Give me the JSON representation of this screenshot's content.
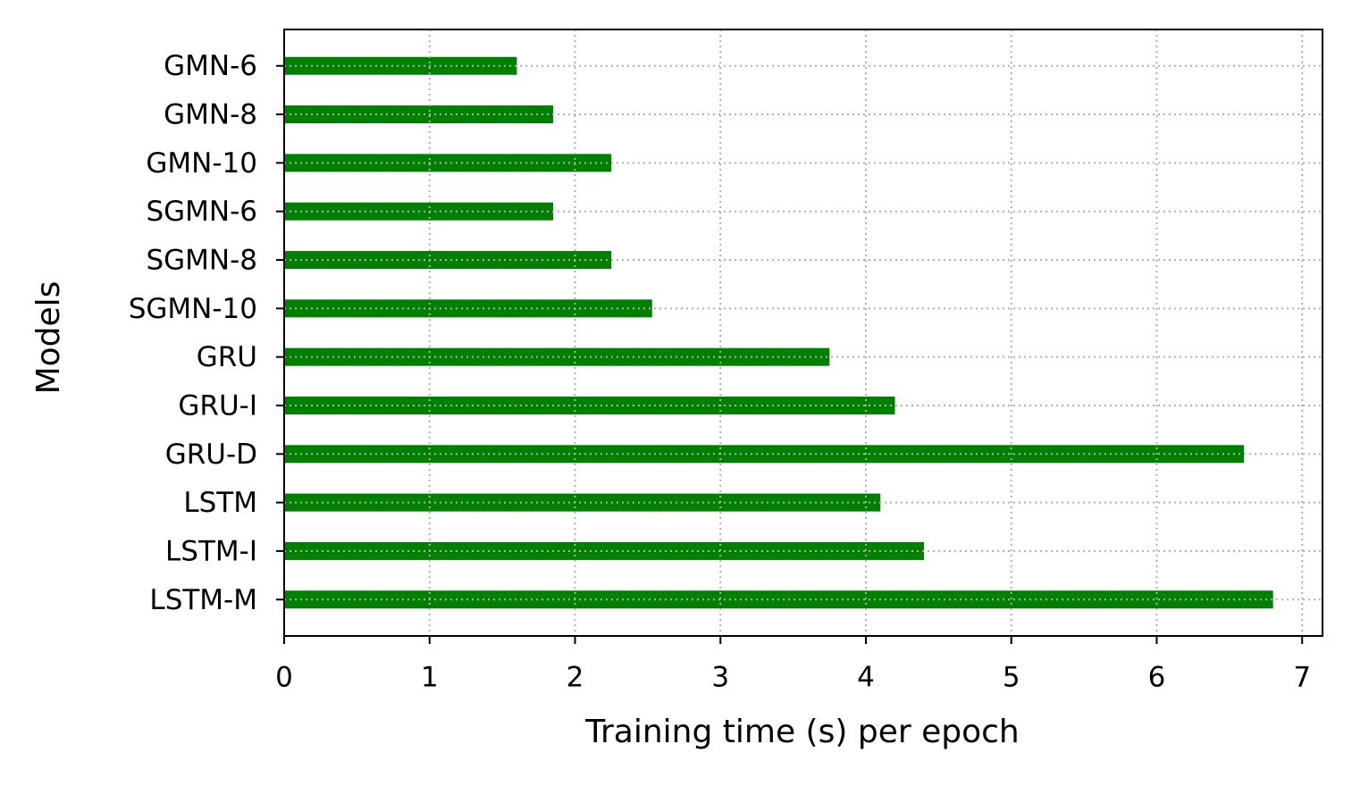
{
  "chart_data": {
    "type": "bar",
    "orientation": "horizontal",
    "xlabel": "Training time (s) per epoch",
    "ylabel": "Models",
    "categories": [
      "GMN-6",
      "GMN-8",
      "GMN-10",
      "SGMN-6",
      "SGMN-8",
      "SGMN-10",
      "GRU",
      "GRU-I",
      "GRU-D",
      "LSTM",
      "LSTM-I",
      "LSTM-M"
    ],
    "values": [
      1.6,
      1.85,
      2.25,
      1.85,
      2.25,
      2.53,
      3.75,
      4.2,
      6.6,
      4.1,
      4.4,
      6.8
    ],
    "color": "#008000",
    "xlim": [
      0,
      7.14
    ],
    "xticks": [
      0,
      1,
      2,
      3,
      4,
      5,
      6,
      7
    ],
    "grid": true
  }
}
